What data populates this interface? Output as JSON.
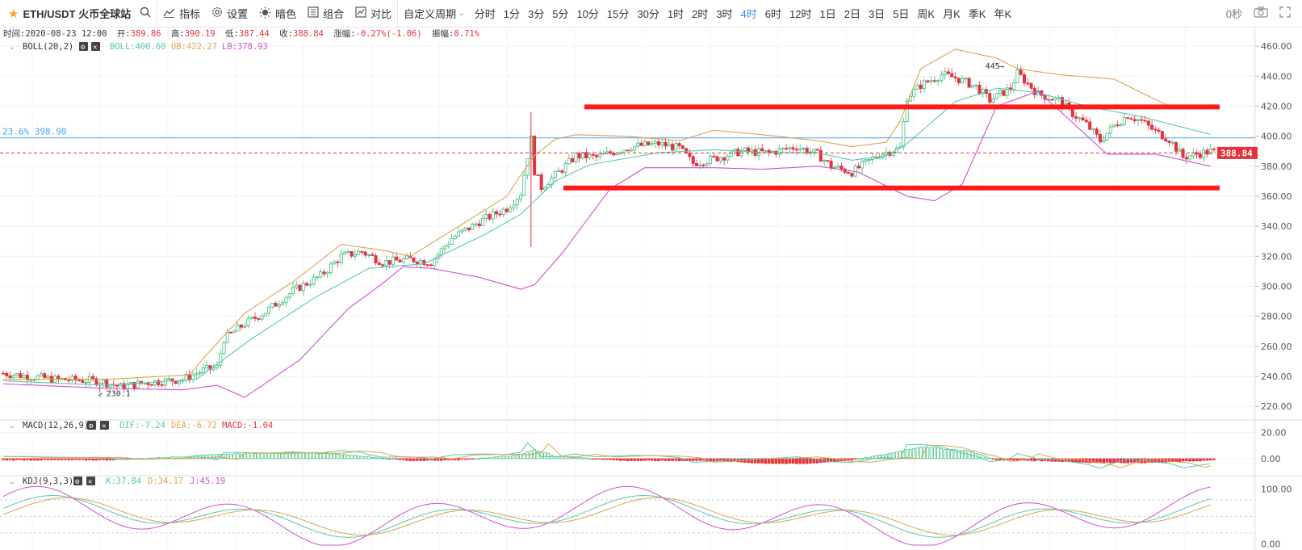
{
  "toolbar": {
    "symbol": "ETH/USDT 火币全球站",
    "indicators": "指标",
    "settings": "设置",
    "dark_mode": "暗色",
    "combo": "组合",
    "compare": "对比",
    "custom_period": "自定义周期",
    "periods": [
      "分时",
      "1分",
      "3分",
      "5分",
      "10分",
      "15分",
      "30分",
      "1时",
      "2时",
      "3时",
      "4时",
      "6时",
      "12时",
      "1日",
      "2日",
      "3日",
      "5日",
      "周K",
      "月K",
      "季K",
      "年K"
    ],
    "active_period": "4时",
    "countdown": "0秒"
  },
  "info_bar": {
    "time_label": "时间:",
    "time": "2020-08-23 12:00",
    "open_label": "开:",
    "open": "389.86",
    "high_label": "高:",
    "high": "390.19",
    "low_label": "低:",
    "low": "387.44",
    "close_label": "收:",
    "close": "388.84",
    "change_label": "涨幅:",
    "change": "-0.27%(-1.06)",
    "amp_label": "振幅:",
    "amp": "0.71%"
  },
  "boll": {
    "name": "BOLL(20,2)",
    "mid": "BOLL:400.60",
    "ub": "UB:422.27",
    "lb": "LB:378.93"
  },
  "macd": {
    "name": "MACD(12,26,9)",
    "dif": "DIF:-7.24",
    "dea": "DEA:-6.72",
    "macd": "MACD:-1.04"
  },
  "kdj": {
    "name": "KDJ(9,3,3)",
    "k": "K:37.84",
    "d": "D:34.17",
    "j": "J:45.19"
  },
  "annotations": {
    "fib_label": "23.6% 398.90",
    "high_mark": "445",
    "low_mark": "230.1",
    "current_price": "388.84"
  },
  "colors": {
    "up": "#3dbd7d",
    "down": "#e5323d",
    "boll_mid": "#56c9b3",
    "boll_ub": "#dba54f",
    "boll_lb": "#cf4fd3",
    "active": "#3a87e6",
    "fib": "#4aa3f0",
    "hline": "#ff1a1a"
  },
  "chart_data": [
    {
      "type": "candlestick",
      "title": "ETH/USDT 4H",
      "y_axis_ticks": [
        "460.00",
        "440.00",
        "420.00",
        "400.00",
        "380.00",
        "360.00",
        "340.00",
        "320.00",
        "300.00",
        "280.00",
        "260.00",
        "240.00",
        "220.00"
      ],
      "ylim": [
        212,
        466
      ],
      "price_path": [
        [
          0,
          242
        ],
        [
          15,
          238
        ],
        [
          28,
          237
        ],
        [
          34,
          233
        ],
        [
          42,
          236
        ],
        [
          52,
          238
        ],
        [
          58,
          244
        ],
        [
          62,
          246
        ],
        [
          64,
          265
        ],
        [
          70,
          275
        ],
        [
          76,
          283
        ],
        [
          84,
          297
        ],
        [
          92,
          307
        ],
        [
          98,
          320
        ],
        [
          104,
          323
        ],
        [
          110,
          316
        ],
        [
          118,
          318
        ],
        [
          124,
          316
        ],
        [
          130,
          332
        ],
        [
          138,
          343
        ],
        [
          146,
          352
        ],
        [
          150,
          362
        ],
        [
          152,
          387
        ],
        [
          153,
          398
        ],
        [
          154,
          377
        ],
        [
          156,
          366
        ],
        [
          162,
          378
        ],
        [
          166,
          387
        ],
        [
          172,
          386
        ],
        [
          182,
          393
        ],
        [
          190,
          395
        ],
        [
          196,
          392
        ],
        [
          200,
          382
        ],
        [
          206,
          385
        ],
        [
          214,
          390
        ],
        [
          222,
          389
        ],
        [
          230,
          393
        ],
        [
          236,
          388
        ],
        [
          240,
          380
        ],
        [
          246,
          376
        ],
        [
          254,
          388
        ],
        [
          260,
          392
        ],
        [
          262,
          426
        ],
        [
          266,
          434
        ],
        [
          272,
          441
        ],
        [
          276,
          439
        ],
        [
          282,
          433
        ],
        [
          286,
          424
        ],
        [
          292,
          432
        ],
        [
          294,
          442
        ],
        [
          300,
          428
        ],
        [
          306,
          424
        ],
        [
          310,
          415
        ],
        [
          314,
          408
        ],
        [
          318,
          397
        ],
        [
          322,
          407
        ],
        [
          326,
          414
        ],
        [
          330,
          410
        ],
        [
          334,
          403
        ],
        [
          338,
          398
        ],
        [
          342,
          386
        ],
        [
          346,
          388
        ],
        [
          350,
          390
        ],
        [
          352,
          389
        ]
      ],
      "bb_upper_path": [
        [
          0,
          238
        ],
        [
          30,
          238
        ],
        [
          54,
          241
        ],
        [
          58,
          252
        ],
        [
          70,
          282
        ],
        [
          84,
          303
        ],
        [
          98,
          328
        ],
        [
          110,
          324
        ],
        [
          118,
          320
        ],
        [
          130,
          337
        ],
        [
          146,
          360
        ],
        [
          150,
          374
        ],
        [
          154,
          387
        ],
        [
          160,
          398
        ],
        [
          166,
          401
        ],
        [
          180,
          400
        ],
        [
          196,
          397
        ],
        [
          206,
          404
        ],
        [
          220,
          401
        ],
        [
          236,
          397
        ],
        [
          246,
          393
        ],
        [
          256,
          396
        ],
        [
          260,
          410
        ],
        [
          266,
          445
        ],
        [
          276,
          458
        ],
        [
          288,
          452
        ],
        [
          294,
          445
        ],
        [
          306,
          441
        ],
        [
          322,
          438
        ],
        [
          338,
          420
        ],
        [
          352,
          421
        ]
      ],
      "bb_mid_path": [
        [
          0,
          237
        ],
        [
          30,
          234
        ],
        [
          56,
          238
        ],
        [
          72,
          265
        ],
        [
          90,
          292
        ],
        [
          106,
          312
        ],
        [
          122,
          315
        ],
        [
          140,
          335
        ],
        [
          150,
          348
        ],
        [
          160,
          370
        ],
        [
          170,
          381
        ],
        [
          190,
          389
        ],
        [
          206,
          391
        ],
        [
          220,
          389
        ],
        [
          236,
          389
        ],
        [
          246,
          384
        ],
        [
          256,
          387
        ],
        [
          262,
          395
        ],
        [
          276,
          423
        ],
        [
          288,
          432
        ],
        [
          300,
          429
        ],
        [
          314,
          420
        ],
        [
          330,
          413
        ],
        [
          352,
          400
        ]
      ],
      "bb_lower_path": [
        [
          0,
          235
        ],
        [
          30,
          232
        ],
        [
          52,
          231
        ],
        [
          62,
          234
        ],
        [
          70,
          226
        ],
        [
          86,
          251
        ],
        [
          100,
          285
        ],
        [
          110,
          302
        ],
        [
          116,
          313
        ],
        [
          124,
          312
        ],
        [
          138,
          306
        ],
        [
          150,
          298
        ],
        [
          154,
          301
        ],
        [
          162,
          322
        ],
        [
          176,
          365
        ],
        [
          186,
          379
        ],
        [
          206,
          379
        ],
        [
          220,
          378
        ],
        [
          236,
          380
        ],
        [
          248,
          376
        ],
        [
          262,
          360
        ],
        [
          270,
          357
        ],
        [
          278,
          368
        ],
        [
          288,
          420
        ],
        [
          300,
          430
        ],
        [
          320,
          388
        ],
        [
          334,
          388
        ],
        [
          352,
          379
        ]
      ],
      "fib_level": 398.9,
      "resistance": 419.5,
      "support": 365.5,
      "current": 388.84,
      "candle_count": 352,
      "volatility": 3.5
    },
    {
      "type": "bar",
      "title": "MACD(12,26,9)",
      "y_axis_ticks": [
        "20.00",
        "0.00"
      ],
      "ylim": [
        -10,
        26
      ],
      "series": [
        {
          "name": "MACD",
          "bars": "histogram"
        }
      ],
      "macd_path": [
        [
          0,
          -1
        ],
        [
          30,
          -1
        ],
        [
          52,
          1.5
        ],
        [
          58,
          3
        ],
        [
          84,
          5
        ],
        [
          100,
          3
        ],
        [
          118,
          -1.5
        ],
        [
          132,
          -1
        ],
        [
          150,
          3
        ],
        [
          154,
          7
        ],
        [
          160,
          2
        ],
        [
          180,
          -1.5
        ],
        [
          206,
          -1.5
        ],
        [
          220,
          -3.5
        ],
        [
          232,
          -4
        ],
        [
          246,
          -1
        ],
        [
          256,
          3.5
        ],
        [
          266,
          9
        ],
        [
          280,
          6
        ],
        [
          288,
          -1
        ],
        [
          300,
          -1.5
        ],
        [
          316,
          -3
        ],
        [
          334,
          -3
        ],
        [
          352,
          -1
        ]
      ]
    },
    {
      "type": "line",
      "title": "KDJ(9,3,3)",
      "y_axis_ticks": [
        "100.00",
        "0.00"
      ],
      "ylim": [
        -5,
        115
      ]
    }
  ]
}
